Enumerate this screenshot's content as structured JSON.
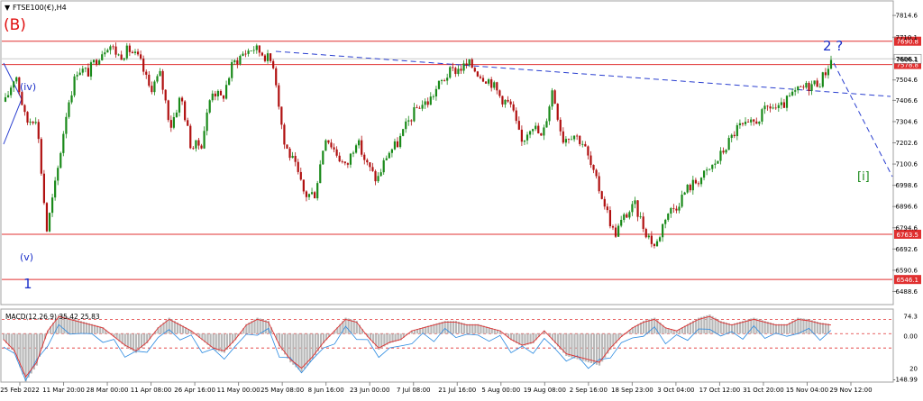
{
  "chart_data": {
    "type": "candlestick",
    "title": "FTSE100(€),H4",
    "menu_glyph": "▼",
    "colors": {
      "up_candle": "#1a8a1a",
      "down_candle": "#b01010",
      "level_line": "#e03030",
      "trend_line": "#2a3fd0",
      "wave_label_blue": "#1a2fc8",
      "wave_label_red": "#e01010",
      "wave_label_green": "#1a8a1a",
      "price_tag_bg": "#e03030",
      "macd_signal": "#e03030",
      "macd_line": "#2a8ae0",
      "macd_hist": "#b8b8b8"
    },
    "y_axis": {
      "range": [
        6430,
        7880
      ],
      "ticks": [
        "7814.6",
        "7710.1",
        "7606.1",
        "7504.6",
        "7406.6",
        "7304.6",
        "7202.6",
        "7100.6",
        "6998.6",
        "6896.6",
        "6794.6",
        "6692.6",
        "6590.6",
        "6488.6"
      ]
    },
    "x_axis": {
      "ticks": [
        "25 Feb 2022",
        "11 Mar 20:00",
        "28 Mar 00:00",
        "11 Apr 08:00",
        "26 Apr 16:00",
        "11 May 00:00",
        "25 May 08:00",
        "8 Jun 16:00",
        "23 Jun 00:00",
        "7 Jul 08:00",
        "21 Jul 16:00",
        "5 Aug 00:00",
        "19 Aug 08:00",
        "2 Sep 16:00",
        "18 Sep 23:00",
        "3 Oct 04:00",
        "17 Oct 12:00",
        "31 Oct 20:00",
        "15 Nov 04:00",
        "29 Nov 12:00"
      ]
    },
    "horizontal_levels": [
      {
        "price": 7690.8,
        "label": "7690.8"
      },
      {
        "price": 7578.8,
        "label": "7578.8"
      },
      {
        "price": 6763.5,
        "label": "6763.5"
      },
      {
        "price": 6546.1,
        "label": "6546.1"
      }
    ],
    "current_price": {
      "price": 7606.1,
      "label": "7606.1"
    },
    "price_path": [
      7400,
      7540,
      7300,
      7330,
      6780,
      7050,
      7380,
      7560,
      7540,
      7620,
      7680,
      7620,
      7650,
      7600,
      7460,
      7530,
      7280,
      7430,
      7180,
      7200,
      7460,
      7410,
      7580,
      7630,
      7660,
      7630,
      7580,
      7200,
      7100,
      6950,
      6960,
      7240,
      7160,
      7080,
      7220,
      7100,
      7020,
      7150,
      7200,
      7300,
      7380,
      7400,
      7480,
      7540,
      7560,
      7580,
      7530,
      7500,
      7420,
      7380,
      7200,
      7300,
      7220,
      7460,
      7220,
      7250,
      7200,
      7050,
      6920,
      6760,
      6850,
      6900,
      6780,
      6700,
      6860,
      6900,
      6980,
      7020,
      7060,
      7120,
      7200,
      7280,
      7280,
      7320,
      7380,
      7360,
      7420,
      7460,
      7480,
      7500,
      7600
    ],
    "wave_labels": [
      {
        "text": "(B)",
        "color": "red"
      },
      {
        "text": "(iv)",
        "color": "blue"
      },
      {
        "text": "(v)",
        "color": "blue"
      },
      {
        "text": "1",
        "color": "blue"
      },
      {
        "text": "2 ?",
        "color": "blue"
      },
      {
        "text": "[i]",
        "color": "green"
      }
    ],
    "macd": {
      "label": "MACD(12,26,9) 35.42 25.83",
      "range": [
        -148.99,
        74.3
      ],
      "ticks": [
        "74.3",
        "0.00",
        "-148.99",
        "20"
      ],
      "levels": [
        45,
        0,
        -45
      ],
      "hist": [
        -20,
        -60,
        -150,
        -100,
        10,
        60,
        50,
        40,
        30,
        20,
        -10,
        -40,
        -60,
        -30,
        20,
        50,
        30,
        10,
        -20,
        -50,
        -60,
        -20,
        30,
        50,
        40,
        -40,
        -90,
        -120,
        -80,
        -30,
        10,
        50,
        40,
        -10,
        -50,
        -30,
        -20,
        10,
        20,
        30,
        40,
        40,
        30,
        30,
        20,
        10,
        -20,
        -40,
        -30,
        10,
        -30,
        -70,
        -80,
        -90,
        -100,
        -50,
        -10,
        20,
        40,
        50,
        20,
        10,
        30,
        50,
        60,
        40,
        30,
        40,
        50,
        40,
        30,
        30,
        50,
        45,
        35,
        30
      ]
    }
  }
}
